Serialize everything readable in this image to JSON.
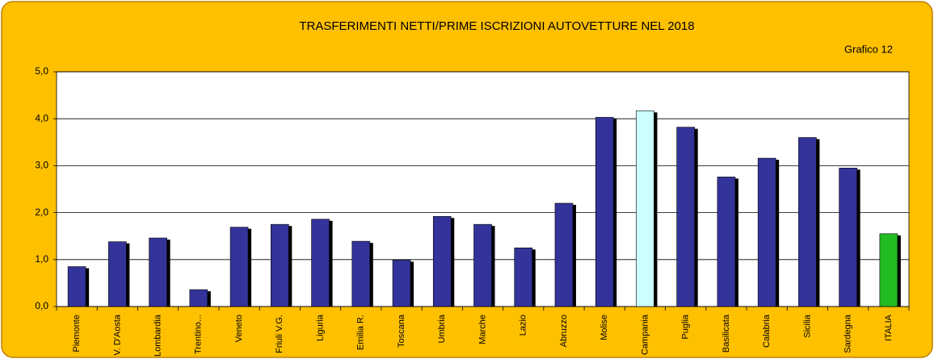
{
  "chart_data": {
    "type": "bar",
    "title": "TRASFERIMENTI NETTI/PRIME ISCRIZIONI AUTOVETTURE NEL 2018",
    "subtitle": "Grafico 12",
    "categories": [
      "Piemonte",
      "V. D'Aosta",
      "Lombardia",
      "Trentino...",
      "Veneto",
      "Friuli V.G.",
      "Liguria",
      "Emilia R.",
      "Toscana",
      "Umbria",
      "Marche",
      "Lazio",
      "Abruzzo",
      "Molise",
      "Campania",
      "Puglia",
      "Basilicata",
      "Calabria",
      "Sicilia",
      "Sardegna",
      "ITALIA"
    ],
    "values": [
      0.85,
      1.38,
      1.46,
      0.36,
      1.69,
      1.75,
      1.86,
      1.39,
      0.99,
      1.92,
      1.75,
      1.25,
      2.2,
      4.03,
      4.17,
      3.82,
      2.76,
      3.16,
      3.6,
      2.95,
      1.55
    ],
    "colors": [
      "#333399",
      "#333399",
      "#333399",
      "#333399",
      "#333399",
      "#333399",
      "#333399",
      "#333399",
      "#333399",
      "#333399",
      "#333399",
      "#333399",
      "#333399",
      "#333399",
      "#ccffff",
      "#333399",
      "#333399",
      "#333399",
      "#333399",
      "#333399",
      "#22bb22"
    ],
    "ylim": [
      0,
      5
    ],
    "yticks": [
      {
        "value": 0,
        "label": "0,0"
      },
      {
        "value": 1,
        "label": "1,0"
      },
      {
        "value": 2,
        "label": "2,0"
      },
      {
        "value": 3,
        "label": "3,0"
      },
      {
        "value": 4,
        "label": "4,0"
      },
      {
        "value": 5,
        "label": "5,0"
      }
    ],
    "grid": true
  }
}
